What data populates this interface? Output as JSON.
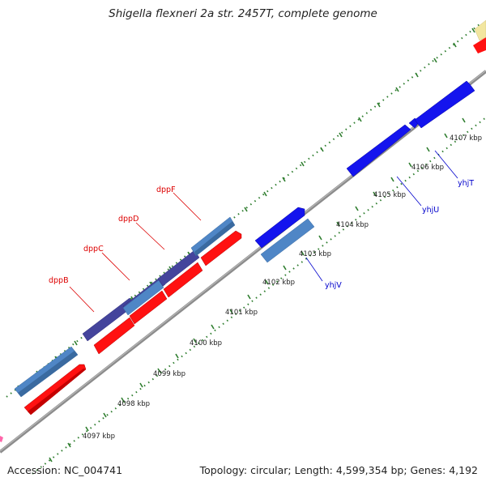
{
  "title": "Shigella flexneri 2a str. 2457T, complete genome",
  "accession": "Accession: NC_004741",
  "topology": "Topology: circular; Length: 4,599,354 bp; Genes: 4,192",
  "colors": {
    "backbone": "#8c8c8c",
    "tick": "#2e7d2e",
    "steel_blue": "#4f86c6",
    "dark_slate": "#44449c",
    "red": "#ff1111",
    "blue": "#1414ee",
    "label_red": "#dd0000",
    "label_blue": "#0000cc",
    "pale_yellow": "#f2e6a0"
  },
  "ticks": [
    {
      "label": "4097 kbp"
    },
    {
      "label": "4098 kbp"
    },
    {
      "label": "4099 kbp"
    },
    {
      "label": "4100 kbp"
    },
    {
      "label": "4101 kbp"
    },
    {
      "label": "4102 kbp"
    },
    {
      "label": "4103 kbp"
    },
    {
      "label": "4104 kbp"
    },
    {
      "label": "4105 kbp"
    },
    {
      "label": "4106 kbp"
    },
    {
      "label": "4107 kbp"
    }
  ],
  "genes": [
    {
      "name": "dppB"
    },
    {
      "name": "dppC"
    },
    {
      "name": "dppD"
    },
    {
      "name": "dppF"
    },
    {
      "name": "yhjV"
    },
    {
      "name": "yhjU"
    },
    {
      "name": "yhjT"
    }
  ]
}
